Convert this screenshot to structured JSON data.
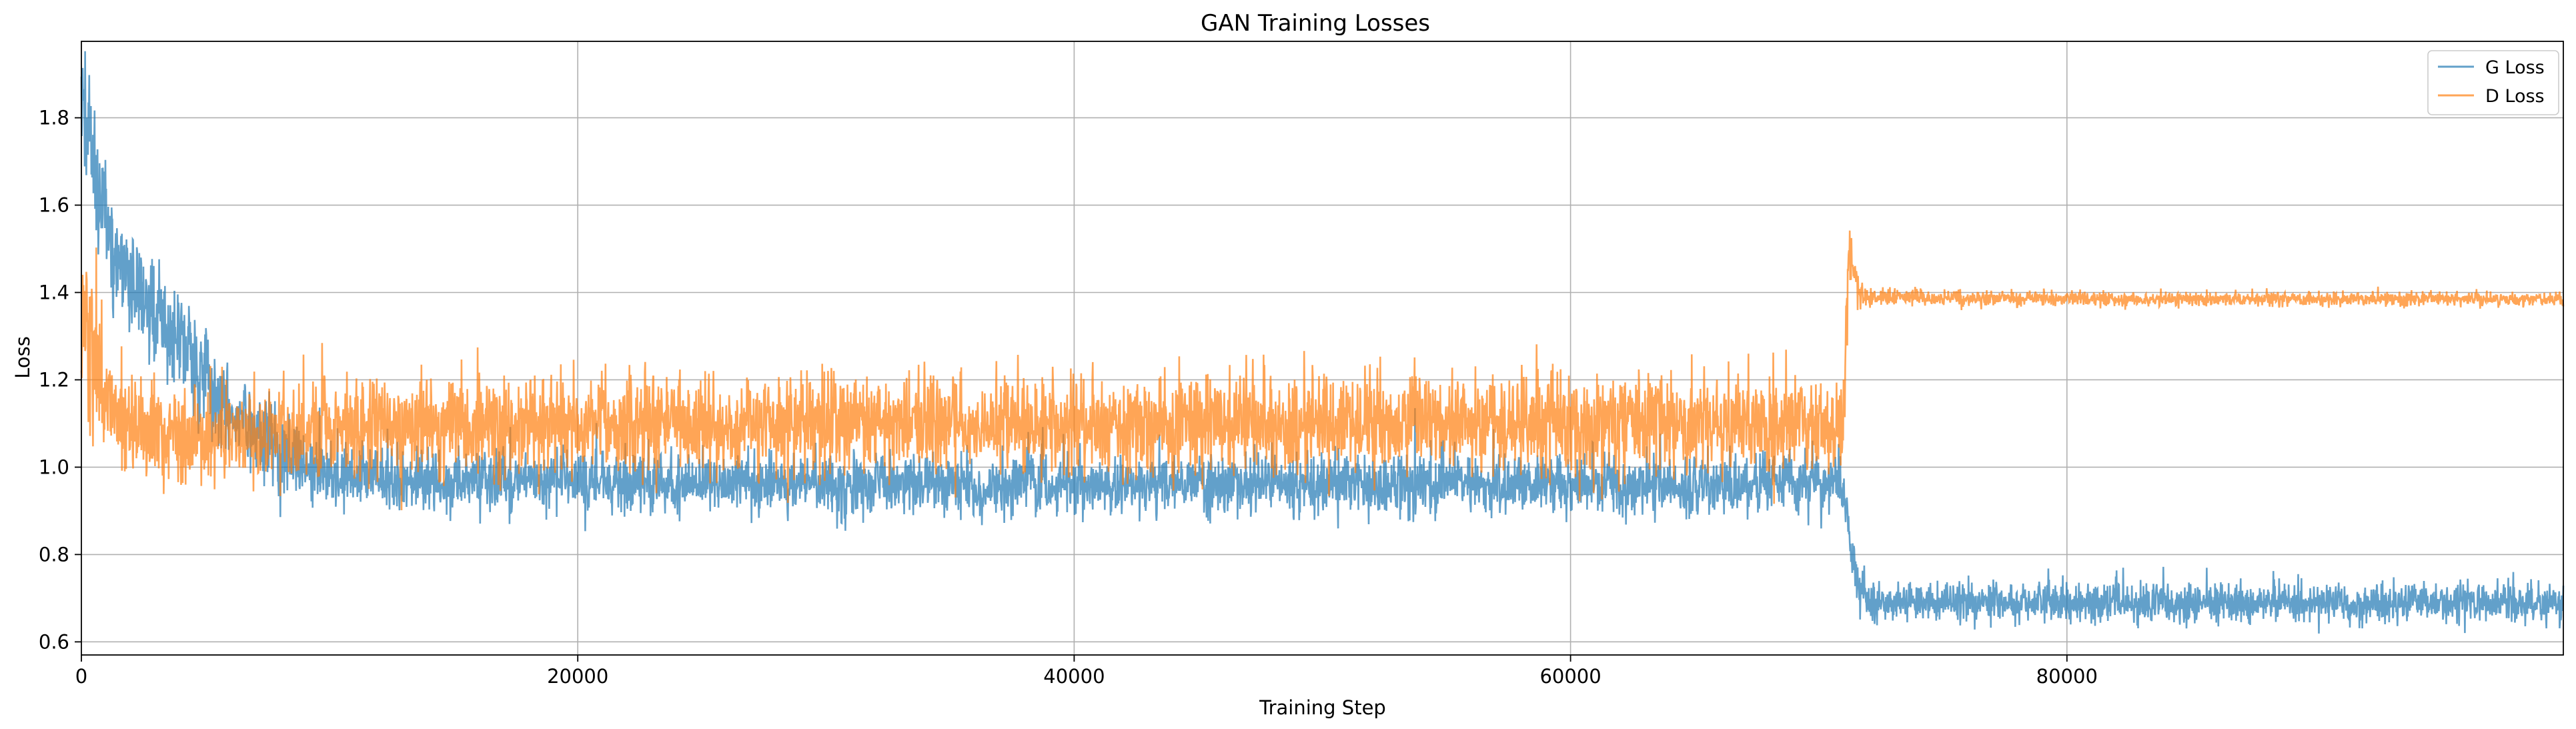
{
  "chart_data": {
    "type": "line",
    "title": "GAN Training Losses",
    "xlabel": "Training Step",
    "ylabel": "Loss",
    "xlim": [
      0,
      100000
    ],
    "ylim": [
      0.57,
      1.975
    ],
    "x_ticks": [
      0,
      20000,
      40000,
      60000,
      80000
    ],
    "y_ticks": [
      0.6,
      0.8,
      1.0,
      1.2,
      1.4,
      1.6,
      1.8
    ],
    "grid": true,
    "legend_position": "top-right",
    "series": [
      {
        "name": "G Loss",
        "color": "#1f77b4",
        "alpha": 0.7,
        "x": [
          0,
          200,
          500,
          1000,
          2000,
          3000,
          4000,
          5000,
          6000,
          7000,
          8000,
          9000,
          10000,
          12000,
          15000,
          20000,
          25000,
          30000,
          35000,
          40000,
          45000,
          50000,
          55000,
          60000,
          65000,
          70000,
          71000,
          71500,
          72000,
          75000,
          80000,
          85000,
          90000,
          95000,
          100000
        ],
        "y": [
          1.85,
          1.8,
          1.68,
          1.55,
          1.42,
          1.35,
          1.28,
          1.2,
          1.13,
          1.08,
          1.03,
          1.0,
          0.98,
          0.97,
          0.97,
          0.97,
          0.96,
          0.96,
          0.96,
          0.96,
          0.96,
          0.96,
          0.96,
          0.96,
          0.96,
          0.96,
          0.95,
          0.74,
          0.69,
          0.69,
          0.69,
          0.69,
          0.69,
          0.69,
          0.69
        ],
        "noise": [
          0.05,
          0.08,
          0.07,
          0.07,
          0.06,
          0.06,
          0.06,
          0.06,
          0.05,
          0.05,
          0.05,
          0.04,
          0.035,
          0.035,
          0.035,
          0.035,
          0.035,
          0.035,
          0.035,
          0.035,
          0.035,
          0.035,
          0.035,
          0.035,
          0.035,
          0.035,
          0.035,
          0.03,
          0.022,
          0.022,
          0.022,
          0.022,
          0.022,
          0.022,
          0.022
        ]
      },
      {
        "name": "D Loss",
        "color": "#ff7f0e",
        "alpha": 0.7,
        "x": [
          0,
          200,
          500,
          1000,
          2000,
          3000,
          4000,
          5000,
          8000,
          10000,
          20000,
          30000,
          40000,
          50000,
          60000,
          70000,
          71000,
          71200,
          71600,
          72000,
          80000,
          90000,
          100000
        ],
        "y": [
          1.3,
          1.35,
          1.22,
          1.15,
          1.1,
          1.08,
          1.07,
          1.07,
          1.08,
          1.09,
          1.1,
          1.1,
          1.1,
          1.1,
          1.1,
          1.1,
          1.1,
          1.5,
          1.4,
          1.39,
          1.385,
          1.385,
          1.385
        ],
        "noise": [
          0.08,
          0.1,
          0.09,
          0.07,
          0.06,
          0.055,
          0.055,
          0.055,
          0.055,
          0.055,
          0.055,
          0.055,
          0.055,
          0.055,
          0.055,
          0.055,
          0.055,
          0.05,
          0.02,
          0.01,
          0.008,
          0.008,
          0.008
        ]
      }
    ]
  }
}
